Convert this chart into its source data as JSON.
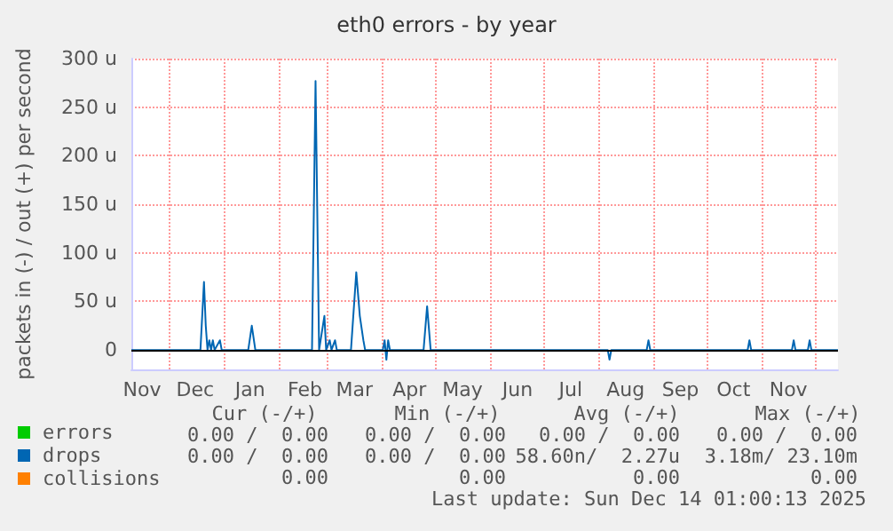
{
  "chart_data": {
    "type": "line",
    "title": "eth0 errors - by year",
    "ylabel": "packets in (-) / out (+) per second",
    "xlim": [
      "2024-11-10",
      "2025-12-14"
    ],
    "xticks": [
      {
        "value": "2024-11-16",
        "label": "Nov"
      },
      {
        "value": "2024-12-01",
        "label": null
      },
      {
        "value": "2024-12-16",
        "label": "Dec"
      },
      {
        "value": "2025-01-01",
        "label": null
      },
      {
        "value": "2025-01-16",
        "label": "Jan"
      },
      {
        "value": "2025-02-01",
        "label": null
      },
      {
        "value": "2025-02-16",
        "label": "Feb"
      },
      {
        "value": "2025-03-01",
        "label": null
      },
      {
        "value": "2025-03-16",
        "label": "Mar"
      },
      {
        "value": "2025-04-01",
        "label": null
      },
      {
        "value": "2025-04-16",
        "label": "Apr"
      },
      {
        "value": "2025-05-01",
        "label": null
      },
      {
        "value": "2025-05-16",
        "label": "May"
      },
      {
        "value": "2025-06-01",
        "label": null
      },
      {
        "value": "2025-06-16",
        "label": "Jun"
      },
      {
        "value": "2025-07-01",
        "label": null
      },
      {
        "value": "2025-07-16",
        "label": "Jul"
      },
      {
        "value": "2025-08-01",
        "label": null
      },
      {
        "value": "2025-08-16",
        "label": "Aug"
      },
      {
        "value": "2025-09-01",
        "label": null
      },
      {
        "value": "2025-09-16",
        "label": "Sep"
      },
      {
        "value": "2025-10-01",
        "label": null
      },
      {
        "value": "2025-10-16",
        "label": "Oct"
      },
      {
        "value": "2025-11-01",
        "label": null
      },
      {
        "value": "2025-11-16",
        "label": "Nov"
      },
      {
        "value": "2025-12-01",
        "label": null
      }
    ],
    "ylim": [
      -20,
      300
    ],
    "yticks": [
      0,
      {
        "value": 50,
        "label": "50 u"
      },
      {
        "value": 100,
        "label": "100 u"
      },
      {
        "value": 150,
        "label": "150 u"
      },
      {
        "value": 200,
        "label": "200 u"
      },
      {
        "value": 250,
        "label": "250 u"
      },
      {
        "value": 300,
        "label": "300 u"
      }
    ],
    "ref_lines": [
      {
        "axis": "y",
        "value": 0,
        "label": null,
        "color": "#000000"
      }
    ],
    "grid": true,
    "legend": "bottom left",
    "marker": "none",
    "line_style": "solid",
    "series": [
      {
        "name": "errors",
        "color": "#00cc00"
      },
      {
        "name": "drops",
        "color": "#0066b3",
        "x": [
          "2024-11-10",
          "2024-12-19",
          "2024-12-21",
          "2024-12-22",
          "2024-12-23",
          "2024-12-24",
          "2024-12-25",
          "2024-12-26",
          "2024-12-27",
          "2024-12-30",
          "2024-12-31",
          "2025-01-15",
          "2025-01-17",
          "2025-01-19",
          "2025-02-20",
          "2025-02-22",
          "2025-02-24",
          "2025-02-27",
          "2025-02-28",
          "2025-03-02",
          "2025-03-03",
          "2025-03-05",
          "2025-03-06",
          "2025-03-14",
          "2025-03-17",
          "2025-03-19",
          "2025-03-21",
          "2025-03-22",
          "2025-04-01",
          "2025-04-02",
          "2025-04-03",
          "2025-04-04",
          "2025-04-05",
          "2025-04-24",
          "2025-04-26",
          "2025-04-28",
          "2025-08-06",
          "2025-08-07",
          "2025-08-08",
          "2025-08-28",
          "2025-08-29",
          "2025-08-30",
          "2025-10-24",
          "2025-10-25",
          "2025-10-26",
          "2025-11-18",
          "2025-11-19",
          "2025-11-20",
          "2025-11-27",
          "2025-11-28",
          "2025-11-29",
          "2025-12-14"
        ],
        "values": [
          0,
          0,
          70,
          25,
          0,
          10,
          0,
          10,
          0,
          10,
          0,
          0,
          25,
          0,
          0,
          277,
          0,
          35,
          0,
          10,
          0,
          10,
          0,
          0,
          80,
          35,
          10,
          0,
          0,
          10,
          -10,
          10,
          0,
          0,
          45,
          0,
          0,
          -10,
          0,
          0,
          10,
          0,
          0,
          10,
          0,
          0,
          10,
          0,
          0,
          10,
          0,
          0
        ]
      },
      {
        "name": "collisions",
        "color": "#ff8000"
      }
    ],
    "annotations": [
      "Cur (-/+)",
      "Min (-/+)",
      "Avg (-/+)",
      "Max (-/+)",
      "0.00 /  0.00",
      "0.00 /  0.00",
      "0.00 /  0.00",
      "0.00 /  0.00",
      "0.00 /  0.00",
      "0.00 /  0.00",
      "58.60n/  2.27u",
      "3.18m/ 23.10m",
      "0.00",
      "0.00",
      "0.00",
      "0.00",
      "Last update: Sun Dec 14 01:00:13 2025"
    ]
  }
}
